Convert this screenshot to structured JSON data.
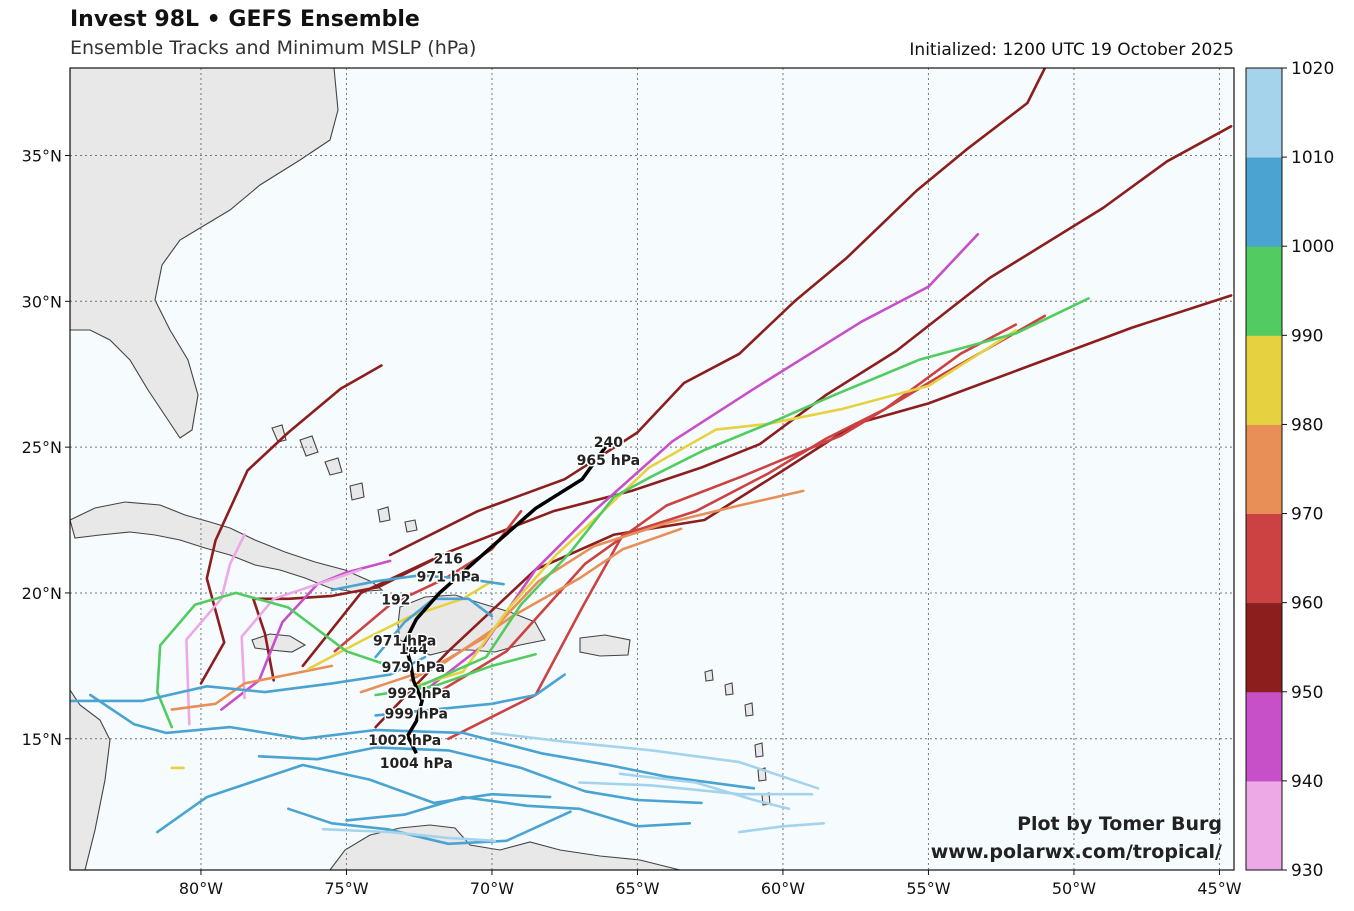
{
  "header": {
    "title": "Invest 98L • GEFS Ensemble",
    "subtitle": "Ensemble Tracks and Minimum MSLP (hPa)",
    "initialized": "Initialized: 1200 UTC 19 October 2025"
  },
  "map": {
    "lon_range": [
      -84.5,
      -44.5
    ],
    "lat_range": [
      10.5,
      38
    ],
    "lon_ticks": [
      {
        "value": -80,
        "label": "80°W"
      },
      {
        "value": -75,
        "label": "75°W"
      },
      {
        "value": -70,
        "label": "70°W"
      },
      {
        "value": -65,
        "label": "65°W"
      },
      {
        "value": -60,
        "label": "60°W"
      },
      {
        "value": -55,
        "label": "55°W"
      },
      {
        "value": -50,
        "label": "50°W"
      },
      {
        "value": -45,
        "label": "45°W"
      }
    ],
    "lat_ticks": [
      {
        "value": 15,
        "label": "15°N"
      },
      {
        "value": 20,
        "label": "20°N"
      },
      {
        "value": 25,
        "label": "25°N"
      },
      {
        "value": 30,
        "label": "30°N"
      },
      {
        "value": 35,
        "label": "35°N"
      }
    ],
    "ocean_color": "#f6fcfe",
    "land_color": "#e8e8e8",
    "gridlines": "dotted"
  },
  "colorbar": {
    "bins": [
      {
        "min": 930,
        "max": 940,
        "color": "#eda8e6"
      },
      {
        "min": 940,
        "max": 950,
        "color": "#c74fc7"
      },
      {
        "min": 950,
        "max": 960,
        "color": "#8c1e1e"
      },
      {
        "min": 960,
        "max": 970,
        "color": "#cc4242"
      },
      {
        "min": 970,
        "max": 980,
        "color": "#e88f58"
      },
      {
        "min": 980,
        "max": 990,
        "color": "#e6d240"
      },
      {
        "min": 990,
        "max": 1000,
        "color": "#52cc60"
      },
      {
        "min": 1000,
        "max": 1010,
        "color": "#4aa3d0"
      },
      {
        "min": 1010,
        "max": 1020,
        "color": "#a5d3ec"
      }
    ],
    "labels": [
      "930",
      "940",
      "950",
      "960",
      "970",
      "980",
      "990",
      "1000",
      "1010",
      "1020"
    ]
  },
  "mean_track": {
    "points": [
      [
        -72.6,
        14.5
      ],
      [
        -72.9,
        15.1
      ],
      [
        -72.6,
        15.6
      ],
      [
        -72.4,
        16.3
      ],
      [
        -72.7,
        17.0
      ],
      [
        -72.8,
        17.6
      ],
      [
        -73.0,
        18.3
      ],
      [
        -72.6,
        19.1
      ],
      [
        -71.8,
        20.0
      ],
      [
        -70.1,
        21.5
      ],
      [
        -68.5,
        22.9
      ],
      [
        -66.9,
        23.9
      ],
      [
        -66.1,
        25.0
      ]
    ],
    "labels": [
      {
        "lon": -72.6,
        "lat": 14.2,
        "hour": "",
        "mslp": "1004 hPa"
      },
      {
        "lon": -73.0,
        "lat": 15.0,
        "hour": "",
        "mslp": "1002 hPa"
      },
      {
        "lon": -72.6,
        "lat": 15.9,
        "hour": "",
        "mslp": "999 hPa"
      },
      {
        "lon": -72.5,
        "lat": 16.6,
        "hour": "",
        "mslp": "992 hPa"
      },
      {
        "lon": -72.7,
        "lat": 17.5,
        "hour": "144",
        "mslp": "979 hPa"
      },
      {
        "lon": -73.0,
        "lat": 18.4,
        "hour": "",
        "mslp": "971 hPa"
      },
      {
        "lon": -73.3,
        "lat": 19.2,
        "hour": "192",
        "mslp": ""
      },
      {
        "lon": -71.5,
        "lat": 20.6,
        "hour": "216",
        "mslp": "971 hPa"
      },
      {
        "lon": -66.0,
        "lat": 24.6,
        "hour": "240",
        "mslp": "965 hPa"
      }
    ]
  },
  "tracks": [
    {
      "color": "#8c1e1e",
      "points": [
        [
          -73.5,
          21.3
        ],
        [
          -70.5,
          22.8
        ],
        [
          -67.5,
          23.9
        ],
        [
          -65.0,
          25.5
        ],
        [
          -63.4,
          27.2
        ],
        [
          -61.5,
          28.2
        ],
        [
          -59.6,
          30.0
        ],
        [
          -57.8,
          31.5
        ],
        [
          -55.4,
          33.8
        ],
        [
          -53.7,
          35.2
        ],
        [
          -51.6,
          36.8
        ],
        [
          -50.9,
          38.2
        ]
      ]
    },
    {
      "color": "#8c1e1e",
      "points": [
        [
          -76.5,
          17.5
        ],
        [
          -74.5,
          20.0
        ],
        [
          -71.5,
          21.4
        ],
        [
          -67.9,
          22.8
        ],
        [
          -65.2,
          23.5
        ],
        [
          -62.8,
          24.3
        ],
        [
          -60.8,
          25.1
        ],
        [
          -58.5,
          26.8
        ],
        [
          -56.1,
          28.3
        ],
        [
          -52.9,
          30.8
        ],
        [
          -49.0,
          33.2
        ],
        [
          -46.8,
          34.8
        ],
        [
          -44.6,
          36.0
        ]
      ]
    },
    {
      "color": "#8c1e1e",
      "points": [
        [
          -74.0,
          15.4
        ],
        [
          -71.5,
          18.0
        ],
        [
          -68.5,
          20.8
        ],
        [
          -65.8,
          22.0
        ],
        [
          -62.7,
          22.5
        ],
        [
          -60.0,
          24.2
        ],
        [
          -57.5,
          25.8
        ],
        [
          -55.0,
          26.5
        ],
        [
          -51.5,
          27.8
        ],
        [
          -48.0,
          29.1
        ],
        [
          -44.6,
          30.2
        ]
      ]
    },
    {
      "color": "#8c1e1e",
      "points": [
        [
          -80.0,
          16.9
        ],
        [
          -79.2,
          18.3
        ],
        [
          -79.8,
          20.5
        ],
        [
          -79.5,
          21.8
        ],
        [
          -78.4,
          24.2
        ],
        [
          -77.0,
          25.5
        ],
        [
          -75.2,
          27.0
        ],
        [
          -73.8,
          27.8
        ]
      ]
    },
    {
      "color": "#8c1e1e",
      "points": [
        [
          -77.5,
          17.0
        ],
        [
          -77.8,
          18.6
        ],
        [
          -78.2,
          19.8
        ],
        [
          -77.0,
          19.8
        ],
        [
          -75.5,
          19.9
        ],
        [
          -73.9,
          20.2
        ],
        [
          -71.5,
          21.4
        ]
      ]
    },
    {
      "color": "#c74fc7",
      "points": [
        [
          -72.5,
          16.5
        ],
        [
          -70.3,
          18.2
        ],
        [
          -68.5,
          20.8
        ],
        [
          -66.5,
          22.8
        ],
        [
          -63.8,
          25.2
        ],
        [
          -61.0,
          27.0
        ],
        [
          -57.3,
          29.3
        ],
        [
          -55.0,
          30.5
        ],
        [
          -53.3,
          32.3
        ]
      ]
    },
    {
      "color": "#c74fc7",
      "points": [
        [
          -79.3,
          16.0
        ],
        [
          -78.0,
          17.0
        ],
        [
          -77.2,
          19.0
        ],
        [
          -76.0,
          20.3
        ],
        [
          -75.0,
          20.7
        ],
        [
          -73.5,
          21.1
        ]
      ]
    },
    {
      "color": "#eda8e6",
      "points": [
        [
          -80.4,
          15.5
        ],
        [
          -80.5,
          18.4
        ],
        [
          -79.3,
          19.8
        ],
        [
          -79.0,
          21.0
        ],
        [
          -78.5,
          22.0
        ]
      ]
    },
    {
      "color": "#eda8e6",
      "points": [
        [
          -78.5,
          16.4
        ],
        [
          -78.6,
          18.5
        ],
        [
          -77.5,
          19.8
        ],
        [
          -76.0,
          20.3
        ],
        [
          -74.5,
          20.8
        ]
      ]
    },
    {
      "color": "#cc4242",
      "points": [
        [
          -72.0,
          16.5
        ],
        [
          -69.5,
          18.0
        ],
        [
          -66.8,
          21.0
        ],
        [
          -64.0,
          23.0
        ],
        [
          -61.4,
          24.0
        ],
        [
          -58.0,
          25.4
        ],
        [
          -54.5,
          27.5
        ],
        [
          -51.0,
          29.5
        ]
      ]
    },
    {
      "color": "#cc4242",
      "points": [
        [
          -71.5,
          15.0
        ],
        [
          -68.5,
          16.5
        ],
        [
          -66.9,
          19.5
        ],
        [
          -65.5,
          22.0
        ],
        [
          -63.0,
          22.8
        ],
        [
          -60.5,
          24.1
        ],
        [
          -58.5,
          25.3
        ],
        [
          -56.5,
          26.3
        ],
        [
          -53.9,
          28.2
        ],
        [
          -52.0,
          29.2
        ]
      ]
    },
    {
      "color": "#cc4242",
      "points": [
        [
          -75.4,
          18.0
        ],
        [
          -73.5,
          19.6
        ],
        [
          -71.6,
          20.5
        ],
        [
          -70.0,
          21.5
        ],
        [
          -69.0,
          22.8
        ]
      ]
    },
    {
      "color": "#e88f58",
      "points": [
        [
          -72.8,
          17.0
        ],
        [
          -70.2,
          18.5
        ],
        [
          -68.4,
          20.4
        ],
        [
          -66.5,
          21.6
        ],
        [
          -64.0,
          22.4
        ],
        [
          -61.5,
          23.0
        ],
        [
          -59.3,
          23.5
        ]
      ]
    },
    {
      "color": "#e88f58",
      "points": [
        [
          -74.5,
          16.6
        ],
        [
          -71.8,
          17.5
        ],
        [
          -69.3,
          19.2
        ],
        [
          -67.0,
          20.5
        ],
        [
          -65.5,
          21.5
        ],
        [
          -63.5,
          22.2
        ]
      ]
    },
    {
      "color": "#e88f58",
      "points": [
        [
          -81.0,
          16.0
        ],
        [
          -79.5,
          16.2
        ],
        [
          -78.5,
          16.9
        ],
        [
          -77.0,
          17.2
        ],
        [
          -75.5,
          17.5
        ]
      ]
    },
    {
      "color": "#e6d240",
      "points": [
        [
          -73.0,
          16.7
        ],
        [
          -71.0,
          17.3
        ],
        [
          -69.4,
          19.5
        ],
        [
          -67.8,
          21.3
        ],
        [
          -66.5,
          22.5
        ],
        [
          -64.6,
          24.3
        ],
        [
          -62.3,
          25.6
        ],
        [
          -60.5,
          25.8
        ],
        [
          -58.0,
          26.3
        ],
        [
          -55.0,
          27.1
        ],
        [
          -52.0,
          29.0
        ]
      ]
    },
    {
      "color": "#e6d240",
      "points": [
        [
          -76.3,
          17.4
        ],
        [
          -74.4,
          18.4
        ],
        [
          -72.8,
          19.2
        ],
        [
          -71.0,
          19.8
        ],
        [
          -70.0,
          20.4
        ]
      ]
    },
    {
      "color": "#e6d240",
      "points": [
        [
          -81.0,
          14.0
        ],
        [
          -80.6,
          14.0
        ]
      ]
    },
    {
      "color": "#52cc60",
      "points": [
        [
          -72.5,
          16.8
        ],
        [
          -70.2,
          17.8
        ],
        [
          -69.0,
          19.6
        ],
        [
          -67.3,
          21.4
        ],
        [
          -65.8,
          23.3
        ],
        [
          -64.5,
          24.0
        ],
        [
          -62.7,
          24.9
        ],
        [
          -60.5,
          25.8
        ],
        [
          -58.2,
          26.8
        ],
        [
          -55.3,
          28.0
        ],
        [
          -52.0,
          28.9
        ],
        [
          -49.5,
          30.1
        ]
      ]
    },
    {
      "color": "#52cc60",
      "points": [
        [
          -74.0,
          16.5
        ],
        [
          -72.0,
          16.8
        ],
        [
          -70.0,
          17.5
        ],
        [
          -68.5,
          17.9
        ]
      ]
    },
    {
      "color": "#52cc60",
      "points": [
        [
          -81.0,
          15.4
        ],
        [
          -81.5,
          16.6
        ],
        [
          -81.4,
          18.2
        ],
        [
          -80.2,
          19.6
        ],
        [
          -78.8,
          20.0
        ],
        [
          -77.0,
          19.5
        ],
        [
          -75.0,
          18.0
        ],
        [
          -73.5,
          17.5
        ]
      ]
    },
    {
      "color": "#4aa3d0",
      "points": [
        [
          -84.5,
          16.3
        ],
        [
          -82.0,
          16.3
        ],
        [
          -79.8,
          16.8
        ],
        [
          -77.8,
          16.6
        ],
        [
          -75.5,
          16.9
        ],
        [
          -73.5,
          17.2
        ],
        [
          -72.3,
          17.8
        ]
      ]
    },
    {
      "color": "#4aa3d0",
      "points": [
        [
          -83.8,
          16.5
        ],
        [
          -82.3,
          15.5
        ],
        [
          -81.2,
          15.2
        ],
        [
          -79.0,
          15.4
        ],
        [
          -76.5,
          15.0
        ],
        [
          -74.0,
          15.3
        ],
        [
          -71.0,
          15.2
        ],
        [
          -68.3,
          14.5
        ],
        [
          -66.0,
          14.1
        ],
        [
          -64.0,
          13.7
        ],
        [
          -61.0,
          13.3
        ]
      ]
    },
    {
      "color": "#4aa3d0",
      "points": [
        [
          -78.0,
          14.4
        ],
        [
          -76.0,
          14.3
        ],
        [
          -74.0,
          14.7
        ],
        [
          -71.5,
          14.6
        ],
        [
          -69.0,
          14.0
        ],
        [
          -66.8,
          13.2
        ],
        [
          -65.0,
          12.9
        ],
        [
          -62.8,
          12.8
        ]
      ]
    },
    {
      "color": "#4aa3d0",
      "points": [
        [
          -75.0,
          12.2
        ],
        [
          -73.0,
          12.4
        ],
        [
          -71.0,
          13.0
        ],
        [
          -68.8,
          12.7
        ],
        [
          -67.0,
          12.6
        ],
        [
          -65.0,
          12.0
        ],
        [
          -63.2,
          12.1
        ]
      ]
    },
    {
      "color": "#4aa3d0",
      "points": [
        [
          -81.5,
          11.8
        ],
        [
          -79.8,
          13.0
        ],
        [
          -78.3,
          13.5
        ],
        [
          -76.5,
          14.1
        ],
        [
          -74.2,
          13.6
        ],
        [
          -72.0,
          12.8
        ],
        [
          -70.0,
          13.1
        ],
        [
          -68.0,
          13.0
        ]
      ]
    },
    {
      "color": "#4aa3d0",
      "points": [
        [
          -77.0,
          12.6
        ],
        [
          -75.5,
          12.1
        ],
        [
          -73.6,
          11.9
        ],
        [
          -71.5,
          11.4
        ],
        [
          -69.5,
          11.5
        ],
        [
          -67.3,
          12.5
        ]
      ]
    },
    {
      "color": "#4aa3d0",
      "points": [
        [
          -74.0,
          15.8
        ],
        [
          -72.0,
          16.0
        ],
        [
          -70.0,
          16.2
        ],
        [
          -68.5,
          16.5
        ],
        [
          -67.5,
          17.2
        ]
      ]
    },
    {
      "color": "#4aa3d0",
      "points": [
        [
          -75.5,
          20.1
        ],
        [
          -74.0,
          20.4
        ],
        [
          -72.5,
          20.6
        ],
        [
          -71.0,
          20.5
        ],
        [
          -69.6,
          20.3
        ]
      ]
    },
    {
      "color": "#4aa3d0",
      "points": [
        [
          -74.0,
          17.8
        ],
        [
          -73.0,
          19.0
        ],
        [
          -72.0,
          19.8
        ],
        [
          -70.8,
          19.8
        ],
        [
          -70.0,
          19.2
        ]
      ]
    },
    {
      "color": "#a5d3ec",
      "points": [
        [
          -70.0,
          15.2
        ],
        [
          -67.5,
          14.9
        ],
        [
          -64.5,
          14.6
        ],
        [
          -61.5,
          14.2
        ],
        [
          -58.8,
          13.3
        ]
      ]
    },
    {
      "color": "#a5d3ec",
      "points": [
        [
          -67.0,
          13.5
        ],
        [
          -64.5,
          13.4
        ],
        [
          -61.5,
          13.1
        ],
        [
          -59.0,
          13.1
        ]
      ]
    },
    {
      "color": "#a5d3ec",
      "points": [
        [
          -65.6,
          13.8
        ],
        [
          -63.0,
          13.5
        ],
        [
          -61.0,
          12.9
        ],
        [
          -59.8,
          12.6
        ]
      ]
    },
    {
      "color": "#a5d3ec",
      "points": [
        [
          -75.8,
          11.9
        ],
        [
          -73.5,
          11.8
        ],
        [
          -71.5,
          11.6
        ],
        [
          -69.9,
          11.5
        ]
      ]
    },
    {
      "color": "#a5d3ec",
      "points": [
        [
          -61.5,
          11.8
        ],
        [
          -60.0,
          12.0
        ],
        [
          -58.6,
          12.1
        ]
      ]
    }
  ],
  "credit": {
    "line1": "Plot by Tomer Burg",
    "line2": "www.polarwx.com/tropical/"
  }
}
